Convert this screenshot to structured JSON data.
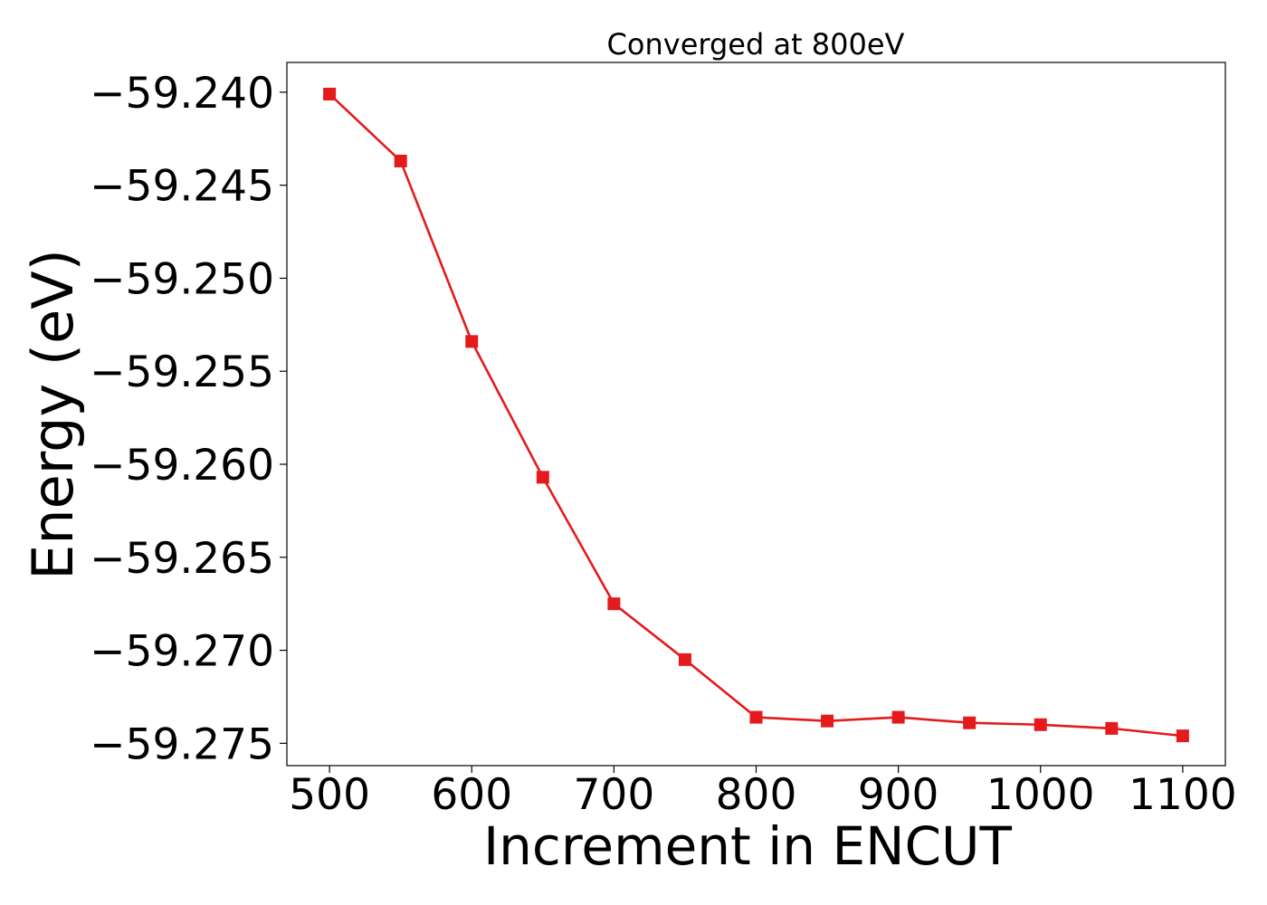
{
  "chart_data": {
    "type": "line",
    "title": "Converged at 800eV",
    "xlabel": "Increment in ENCUT",
    "ylabel": "Energy (eV)",
    "xlim": [
      470,
      1130
    ],
    "ylim": [
      -59.2762,
      -59.2384
    ],
    "x_ticks": [
      500,
      600,
      700,
      800,
      900,
      1000,
      1100
    ],
    "y_ticks": [
      -59.24,
      -59.245,
      -59.25,
      -59.255,
      -59.26,
      -59.265,
      -59.27,
      -59.275
    ],
    "y_tick_labels": [
      "−59.240",
      "−59.245",
      "−59.250",
      "−59.255",
      "−59.260",
      "−59.265",
      "−59.270",
      "−59.275"
    ],
    "grid": false,
    "series": [
      {
        "color": "#e41a1c",
        "marker": "square",
        "x": [
          500,
          550,
          600,
          650,
          700,
          750,
          800,
          850,
          900,
          950,
          1000,
          1050,
          1100
        ],
        "y": [
          -59.2401,
          -59.2437,
          -59.2534,
          -59.2607,
          -59.2675,
          -59.2705,
          -59.2736,
          -59.2738,
          -59.2736,
          -59.2739,
          -59.274,
          -59.2742,
          -59.2746
        ]
      }
    ]
  }
}
